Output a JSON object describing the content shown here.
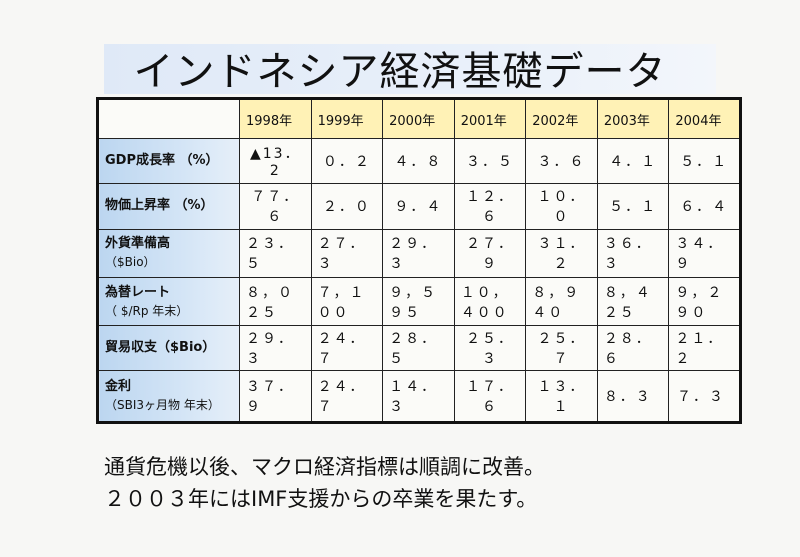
{
  "title": "インドネシア経済基礎データ",
  "years": [
    "1998年",
    "1999年",
    "2000年",
    "2001年",
    "2002年",
    "2003年",
    "2004年"
  ],
  "rows": [
    {
      "label": "GDP成長率 （%）",
      "sub": "",
      "values": [
        "▲13．2",
        "０．２",
        "４．８",
        "３．５",
        "３．６",
        "４．１",
        "５．１"
      ]
    },
    {
      "label": "物価上昇率 （%）",
      "sub": "",
      "values": [
        "７７．６",
        "２．０",
        "９．４",
        "１２．６",
        "１０．０",
        "５．１",
        "６．４"
      ]
    },
    {
      "label": "外貨準備高",
      "sub": "（$Bio）",
      "values": [
        "２３．５",
        "２７．３",
        "２９．３",
        "２７．９",
        "３１．２",
        "３６．３",
        "３４．９"
      ]
    },
    {
      "label": "為替レート",
      "sub": "（ $/Rp 年末）",
      "values": [
        "８，０２５",
        "７，１００",
        "９，５９５",
        "１０，４００",
        "８，９４０",
        "８，４２５",
        "９，２９０"
      ]
    },
    {
      "label": "貿易収支（$Bio）",
      "sub": "",
      "values": [
        "２９．３",
        "２４．７",
        "２８．５",
        "２５．３",
        "２５．７",
        "２８．６",
        "２１．２"
      ]
    },
    {
      "label": "金利",
      "sub": "（SBI3ヶ月物 年末）",
      "values": [
        "３７．９",
        "２４．７",
        "１４．３",
        "１７．６",
        "１３．１",
        "８．３",
        "７．３"
      ]
    }
  ],
  "footer": [
    "通貨危機以後、マクロ経済指標は順調に改善。",
    "２００３年にはIMF支援からの卒業を果たす。"
  ]
}
